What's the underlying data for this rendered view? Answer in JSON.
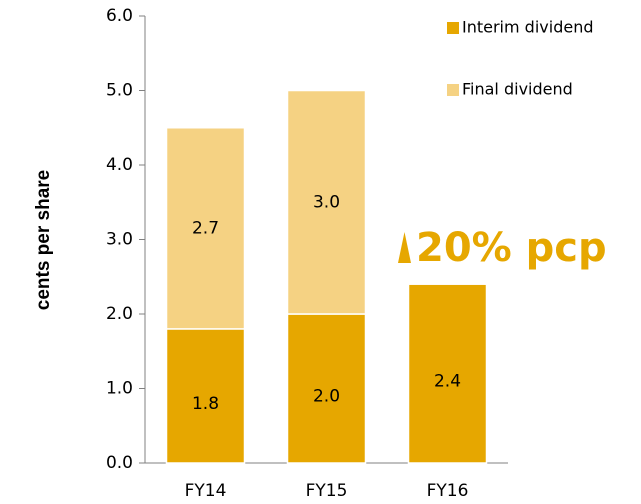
{
  "chart_data": {
    "type": "stacked_bar",
    "y_label": "cents per share",
    "categories": [
      "FY14",
      "FY15",
      "FY16"
    ],
    "series": [
      {
        "name": "Interim dividend",
        "color": "#e6a700",
        "values": [
          1.8,
          2.0,
          2.4
        ],
        "value_labels": [
          "1.8",
          "2.0",
          "2.4"
        ]
      },
      {
        "name": "Final dividend",
        "color": "#f5d283",
        "values": [
          2.7,
          3.0,
          null
        ],
        "value_labels": [
          "2.7",
          "3.0",
          null
        ]
      }
    ],
    "ylim": [
      0,
      6
    ],
    "yticks": [
      {
        "value": 0,
        "label": "0.0"
      },
      {
        "value": 1,
        "label": "1.0"
      },
      {
        "value": 2,
        "label": "2.0"
      },
      {
        "value": 3,
        "label": "3.0"
      },
      {
        "value": 4,
        "label": "4.0"
      },
      {
        "value": 5,
        "label": "5.0"
      },
      {
        "value": 6,
        "label": "6.0"
      }
    ],
    "annotation": "20% pcp",
    "legend": "top-right"
  }
}
